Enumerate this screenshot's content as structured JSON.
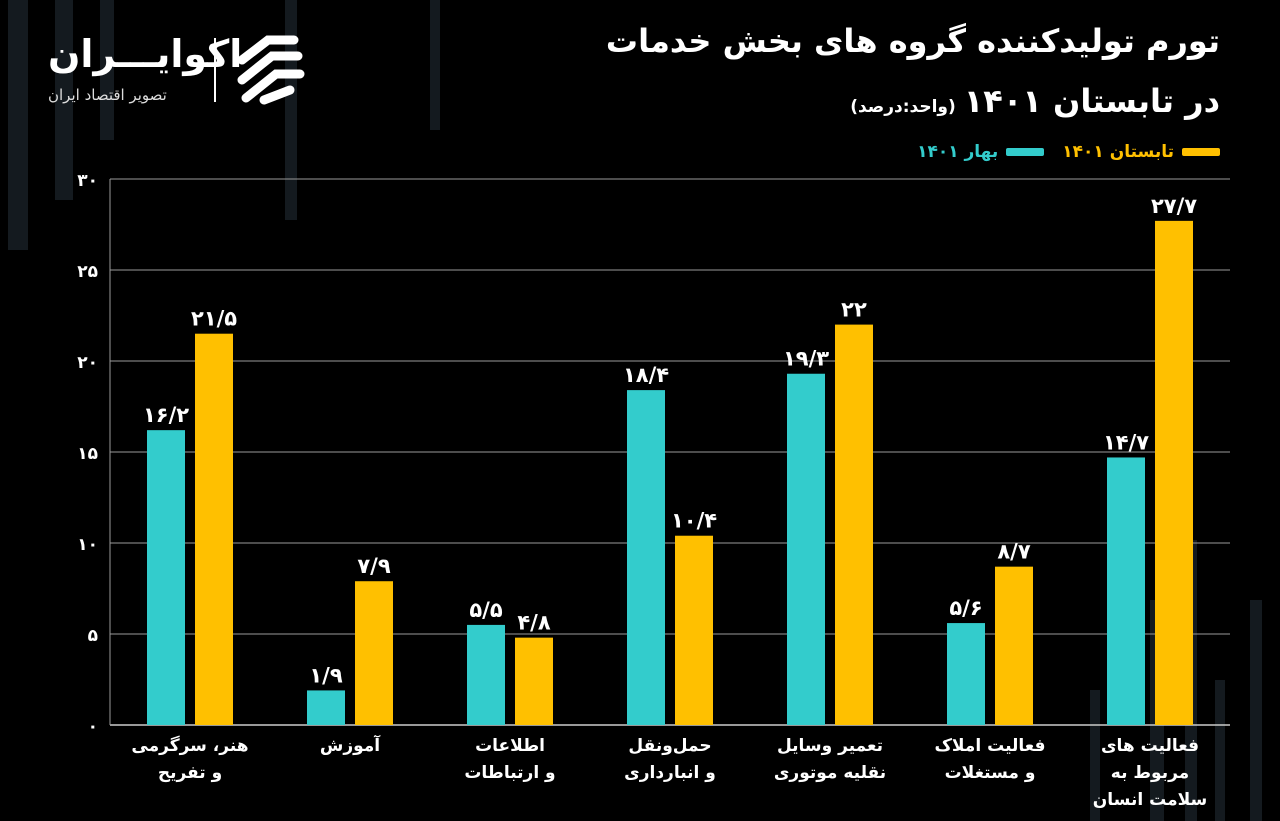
{
  "title": {
    "line1": "تورم تولیدکننده گروه های بخش خدمات",
    "line2": "در تابستان ۱۴۰۱",
    "unit": "(واحد:درصد)"
  },
  "logo": {
    "name": "اکوایـــران",
    "subtitle": "تصویر اقتصاد ایران"
  },
  "legend": [
    {
      "label": "تابستان ۱۴۰۱",
      "color": "#ffc000"
    },
    {
      "label": "بهار ۱۴۰۱",
      "color": "#33cccc"
    }
  ],
  "chart_data": {
    "type": "bar",
    "title": "تورم تولیدکننده گروه های بخش خدمات در تابستان ۱۴۰۱",
    "ylabel": "درصد",
    "ylim": [
      0,
      30
    ],
    "yticks": [
      0,
      5,
      10,
      15,
      20,
      25,
      30
    ],
    "ytick_labels": [
      "۰",
      "۵",
      "۱۰",
      "۱۵",
      "۲۰",
      "۲۵",
      "۳۰"
    ],
    "grid": true,
    "categories": [
      [
        "هنر، سرگرمی",
        "و تفریح"
      ],
      [
        "آموزش"
      ],
      [
        "اطلاعات",
        "و ارتباطات"
      ],
      [
        "حمل‌ونقل",
        "و انبارداری"
      ],
      [
        "تعمیر وسایل",
        "نقلیه موتوری"
      ],
      [
        "فعالیت املاک",
        "و مستغلات"
      ],
      [
        "فعالیت های",
        "مربوط به",
        "سلامت انسان"
      ]
    ],
    "series": [
      {
        "name": "بهار ۱۴۰۱",
        "color": "#33cccc",
        "values": [
          16.2,
          1.9,
          5.5,
          18.4,
          19.3,
          5.6,
          14.7
        ],
        "labels": [
          "۱۶/۲",
          "۱/۹",
          "۵/۵",
          "۱۸/۴",
          "۱۹/۳",
          "۵/۶",
          "۱۴/۷"
        ]
      },
      {
        "name": "تابستان ۱۴۰۱",
        "color": "#ffc000",
        "values": [
          21.5,
          7.9,
          4.8,
          10.4,
          22,
          8.7,
          27.7
        ],
        "labels": [
          "۲۱/۵",
          "۷/۹",
          "۴/۸",
          "۱۰/۴",
          "۲۲",
          "۸/۷",
          "۲۷/۷"
        ]
      }
    ]
  }
}
